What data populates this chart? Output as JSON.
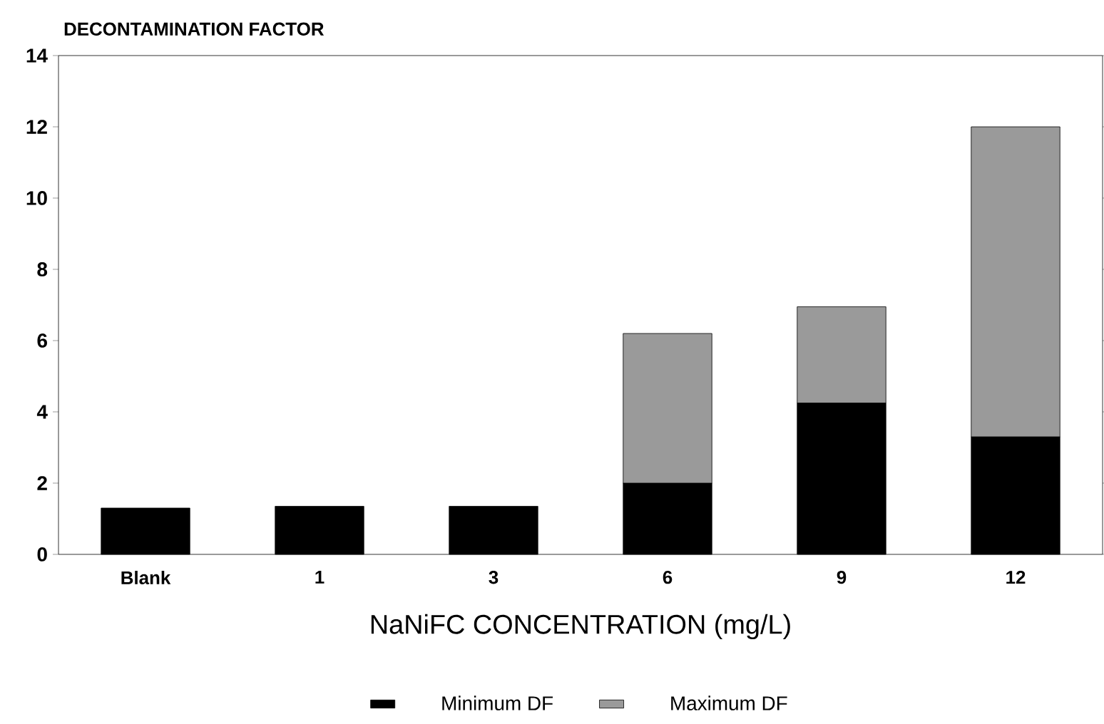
{
  "chart_data": {
    "type": "bar",
    "stacked": true,
    "ylabel": "DECONTAMINATION FACTOR",
    "xlabel": "NaNiFC CONCENTRATION (mg/L)",
    "categories": [
      "Blank",
      "1",
      "3",
      "6",
      "9",
      "12"
    ],
    "series": [
      {
        "name": "Minimum DF",
        "color": "#000000",
        "values": [
          1.3,
          1.35,
          1.35,
          2.0,
          4.25,
          3.3
        ]
      },
      {
        "name": "Maximum DF",
        "color": "#9a9a9a",
        "values": [
          null,
          null,
          null,
          4.2,
          2.7,
          8.7
        ]
      }
    ],
    "ylim": [
      0,
      14
    ],
    "yticks": [
      0,
      2,
      4,
      6,
      8,
      10,
      12,
      14
    ],
    "legend": "bottom"
  }
}
